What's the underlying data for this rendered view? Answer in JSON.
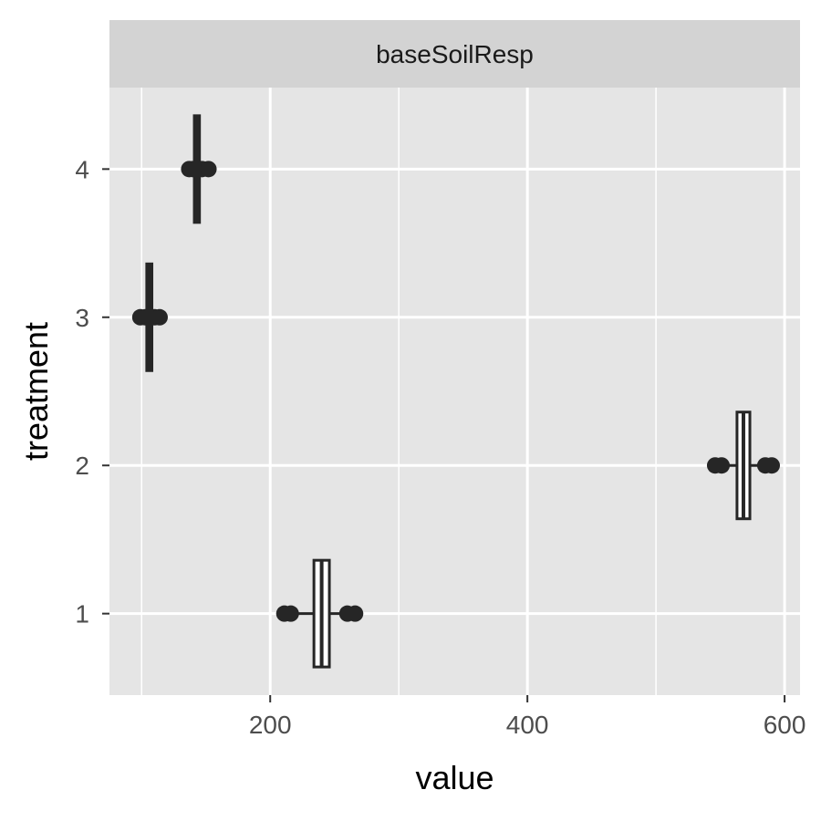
{
  "colors": {
    "panel_background": "#e5e5e5",
    "strip_background": "#d3d3d3",
    "grid_line": "#ffffff",
    "box": "#262626",
    "tick_label": "#4d4d4d"
  },
  "chart_data": {
    "type": "boxplot",
    "facet_label": "baseSoilResp",
    "xlabel": "value",
    "ylabel": "treatment",
    "xlim": [
      75,
      612
    ],
    "ylim": [
      0.45,
      4.55
    ],
    "xticks": [
      200,
      400,
      600
    ],
    "yticks": [
      1,
      2,
      3,
      4
    ],
    "grid": true,
    "orientation": "horizontal",
    "boxes": [
      {
        "category": "1",
        "q1": 234,
        "median": 240,
        "q3": 246,
        "whisker_low": 209,
        "whisker_high": 269,
        "outliers": [
          211,
          216,
          260,
          266
        ]
      },
      {
        "category": "2",
        "q1": 563,
        "median": 568,
        "q3": 573,
        "whisker_low": 544,
        "whisker_high": 592,
        "outliers": [
          546,
          551,
          585,
          590
        ]
      },
      {
        "category": "3",
        "q1": 104,
        "median": 106,
        "q3": 108,
        "whisker_low": 97,
        "whisker_high": 116,
        "outliers": [
          99,
          103,
          110,
          114
        ]
      },
      {
        "category": "4",
        "q1": 141,
        "median": 143,
        "q3": 145,
        "whisker_low": 135,
        "whisker_high": 154,
        "outliers": [
          137,
          140,
          147,
          152
        ]
      }
    ]
  }
}
